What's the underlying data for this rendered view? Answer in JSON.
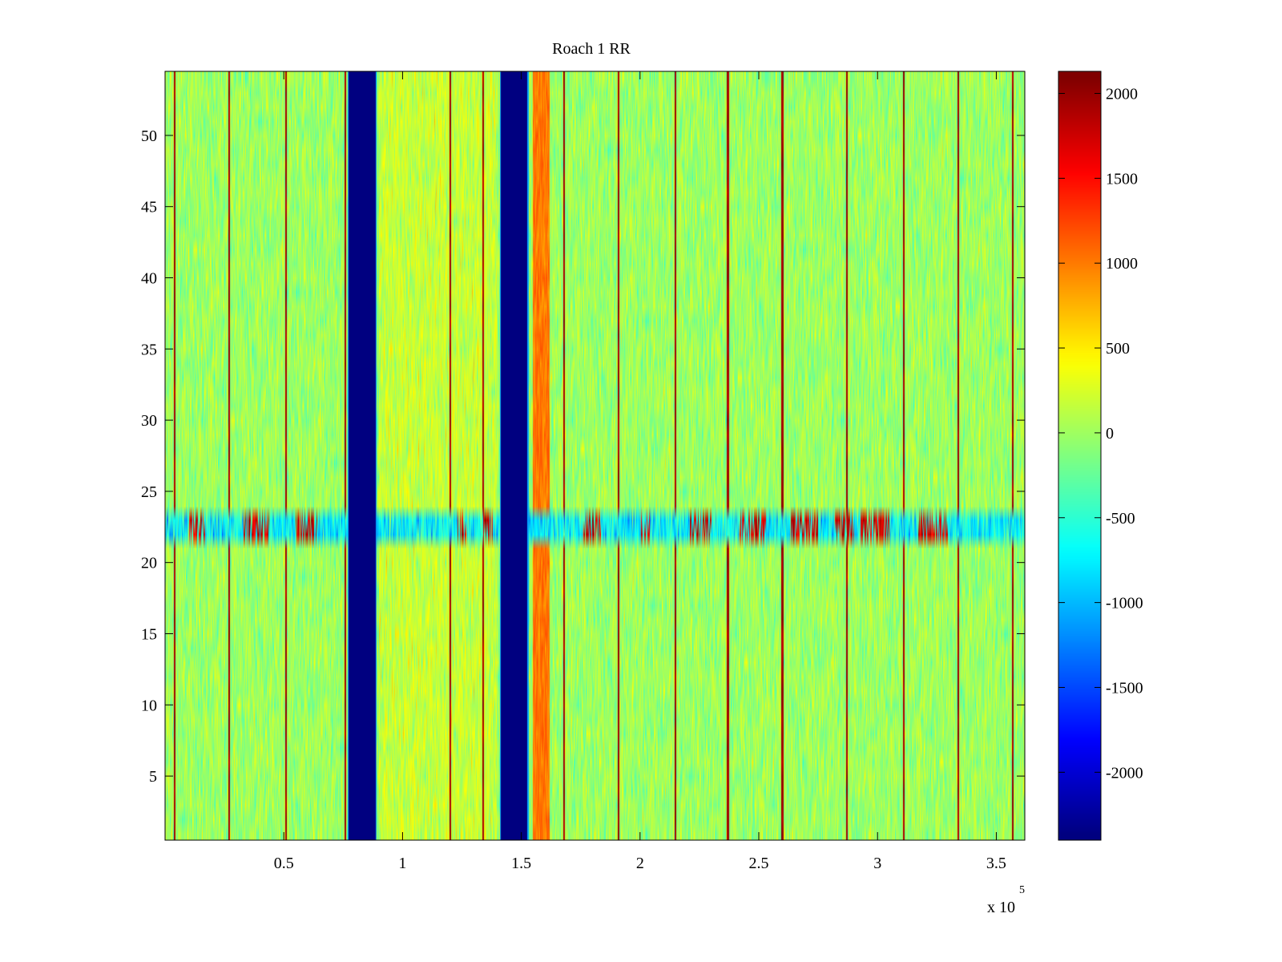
{
  "chart_data": {
    "type": "heatmap",
    "title": "Roach 1 RR",
    "xlabel": "",
    "ylabel": "",
    "x_exponent_label": "x 10",
    "x_exponent_power": "5",
    "xlim": [
      0,
      3.62
    ],
    "ylim": [
      0.5,
      54.5
    ],
    "x_ticks": [
      0.5,
      1,
      1.5,
      2,
      2.5,
      3,
      3.5
    ],
    "x_tick_labels": [
      "0.5",
      "1",
      "1.5",
      "2",
      "2.5",
      "3",
      "3.5"
    ],
    "y_ticks": [
      5,
      10,
      15,
      20,
      25,
      30,
      35,
      40,
      45,
      50
    ],
    "y_tick_labels": [
      "5",
      "10",
      "15",
      "20",
      "25",
      "30",
      "35",
      "40",
      "45",
      "50"
    ],
    "colorbar": {
      "clim": [
        -2400,
        2130
      ],
      "ticks": [
        2000,
        1500,
        1000,
        500,
        0,
        -500,
        -1000,
        -1500,
        -2000
      ],
      "tick_labels": [
        "2000",
        "1500",
        "1000",
        "500",
        "0",
        "-500",
        "-1000",
        "-1500",
        "-2000"
      ],
      "colormap": "jet"
    },
    "features": {
      "background_value": 0,
      "low_bands_x": [
        [
          0.77,
          0.89
        ],
        [
          1.41,
          1.53
        ]
      ],
      "low_band_value": -2400,
      "high_band_x": [
        1.55,
        1.62
      ],
      "high_band_value": 1100,
      "warm_region_x": [
        0.9,
        1.4
      ],
      "vertical_line_x": [
        0.04,
        0.27,
        0.51,
        0.76,
        1.2,
        1.34,
        1.68,
        1.91,
        2.15,
        2.37,
        2.6,
        2.87,
        3.11,
        3.34,
        3.57
      ],
      "vertical_line_value": 2100,
      "disturbed_rows_y": [
        21.5,
        23.5
      ],
      "disturbed_row_bursts_x": [
        [
          0.1,
          0.17
        ],
        [
          0.33,
          0.44
        ],
        [
          0.55,
          0.64
        ],
        [
          1.23,
          1.27
        ],
        [
          1.34,
          1.38
        ],
        [
          1.76,
          1.84
        ],
        [
          2.0,
          2.04
        ],
        [
          2.21,
          2.3
        ],
        [
          2.42,
          2.53
        ],
        [
          2.63,
          2.75
        ],
        [
          2.82,
          2.9
        ],
        [
          2.93,
          3.05
        ],
        [
          3.17,
          3.3
        ]
      ]
    }
  }
}
